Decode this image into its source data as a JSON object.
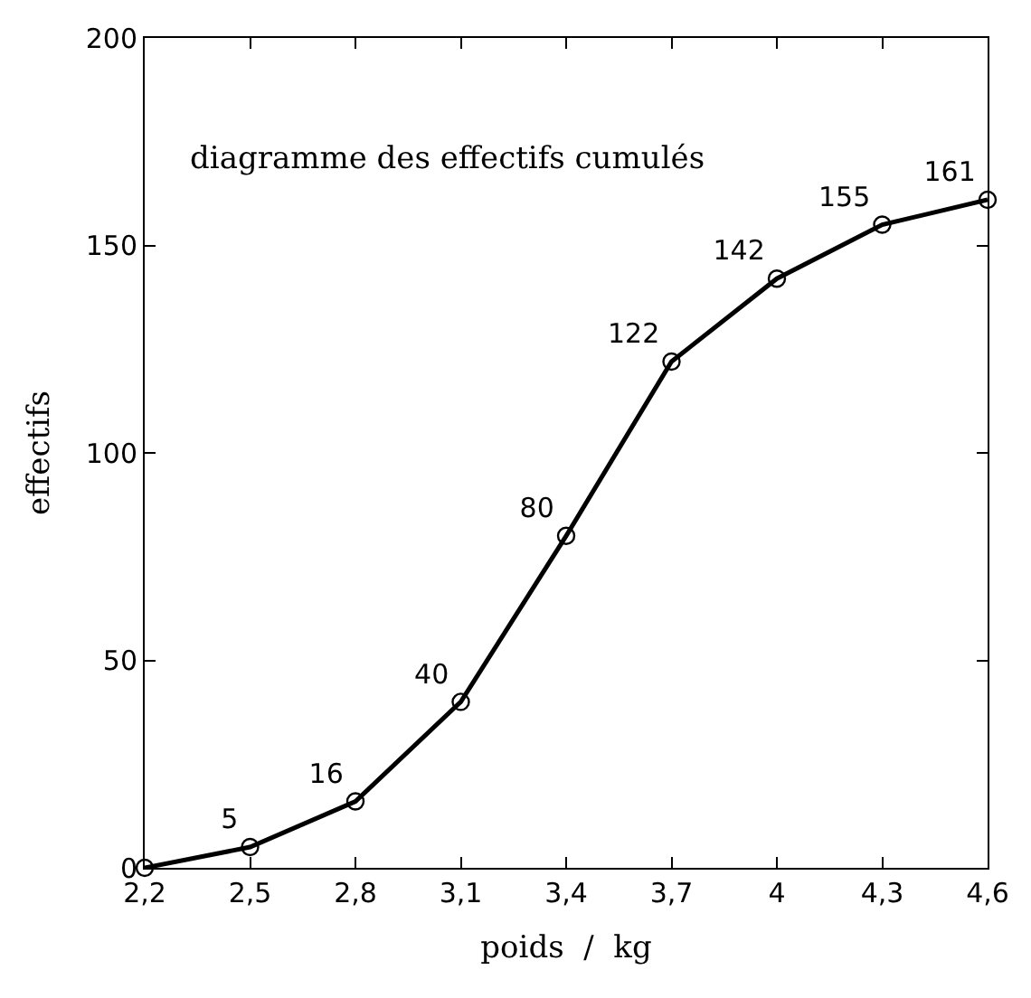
{
  "chart_data": {
    "type": "line",
    "xlabel": "poids  /  kg",
    "ylabel": "effectifs",
    "annotations": [
      "diagramme des effectifs cumulés"
    ],
    "x": [
      2.2,
      2.5,
      2.8,
      3.1,
      3.4,
      3.7,
      4.0,
      4.3,
      4.6
    ],
    "series": [
      {
        "color": "#000000",
        "values": [
          0,
          5,
          16,
          40,
          80,
          122,
          142,
          155,
          161
        ],
        "value_labels": [
          null,
          "5",
          "16",
          "40",
          "80",
          "122",
          "142",
          "155",
          "161"
        ]
      }
    ],
    "xlim": [
      2.2,
      4.6
    ],
    "xticks": [
      {
        "value": 2.2,
        "label": "2,2"
      },
      {
        "value": 2.5,
        "label": "2,5"
      },
      {
        "value": 2.8,
        "label": "2,8"
      },
      {
        "value": 3.1,
        "label": "3,1"
      },
      {
        "value": 3.4,
        "label": "3,4"
      },
      {
        "value": 3.7,
        "label": "3,7"
      },
      {
        "value": 4.0,
        "label": "4"
      },
      {
        "value": 4.3,
        "label": "4,3"
      },
      {
        "value": 4.6,
        "label": "4,6"
      }
    ],
    "ylim": [
      0,
      200
    ],
    "yticks": [
      0,
      50,
      100,
      150,
      200
    ],
    "marker": "circle",
    "line_style": "solid"
  }
}
